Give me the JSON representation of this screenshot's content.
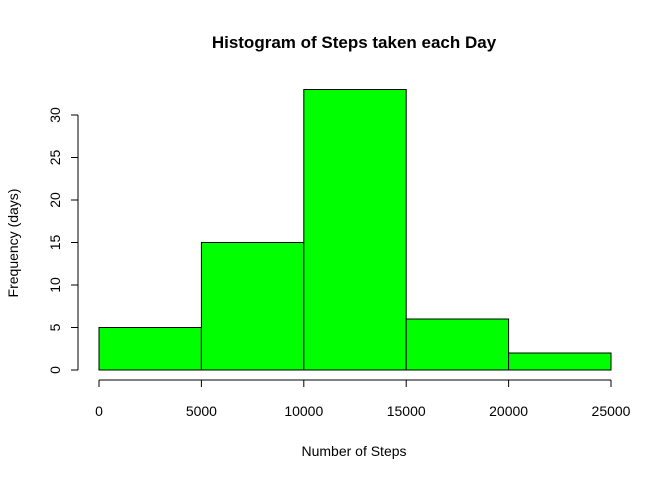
{
  "chart_data": {
    "type": "bar",
    "title": "Histogram of Steps taken each Day",
    "xlabel": "Number of Steps",
    "ylabel": "Frequency (days)",
    "bins": [
      {
        "from": 0,
        "to": 5000,
        "count": 5
      },
      {
        "from": 5000,
        "to": 10000,
        "count": 15
      },
      {
        "from": 10000,
        "to": 15000,
        "count": 33
      },
      {
        "from": 15000,
        "to": 20000,
        "count": 6
      },
      {
        "from": 20000,
        "to": 25000,
        "count": 2
      }
    ],
    "x_ticks": [
      0,
      5000,
      10000,
      15000,
      20000,
      25000
    ],
    "y_ticks": [
      0,
      5,
      10,
      15,
      20,
      25,
      30
    ],
    "xlim": [
      0,
      25000
    ],
    "ylim": [
      0,
      33
    ],
    "bar_color": "#00ff00",
    "grid": false,
    "legend": "none"
  }
}
